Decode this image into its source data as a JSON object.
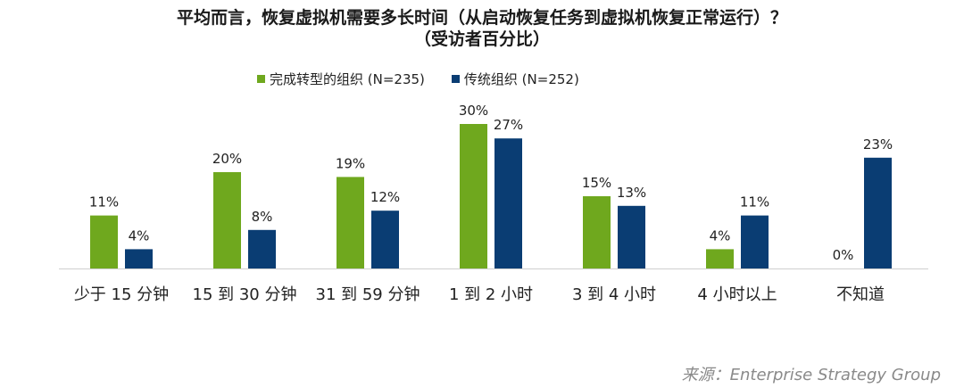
{
  "chart_data": {
    "type": "bar",
    "title": "平均而言，恢复虚拟机需要多长时间（从启动恢复任务到虚拟机恢复正常运行）？",
    "subtitle": "（受访者百分比）",
    "categories": [
      "少于 15 分钟",
      "15 到 30 分钟",
      "31 到 59 分钟",
      "1 到 2 小时",
      "3 到 4 小时",
      "4 小时以上",
      "不知道"
    ],
    "series": [
      {
        "name": "完成转型的组织 (N=235)",
        "color": "#6fa81e",
        "values": [
          11,
          20,
          19,
          30,
          15,
          4,
          0
        ],
        "labels": [
          "11%",
          "20%",
          "19%",
          "30%",
          "15%",
          "4%",
          "0%"
        ]
      },
      {
        "name": "传统组织 (N=252)",
        "color": "#0a3d73",
        "values": [
          4,
          8,
          12,
          27,
          13,
          11,
          23
        ],
        "labels": [
          "4%",
          "8%",
          "12%",
          "27%",
          "13%",
          "11%",
          "23%"
        ]
      }
    ],
    "ylim": [
      0,
      30
    ],
    "legend_position": "top",
    "grid": false
  },
  "source": "来源：Enterprise Strategy Group"
}
